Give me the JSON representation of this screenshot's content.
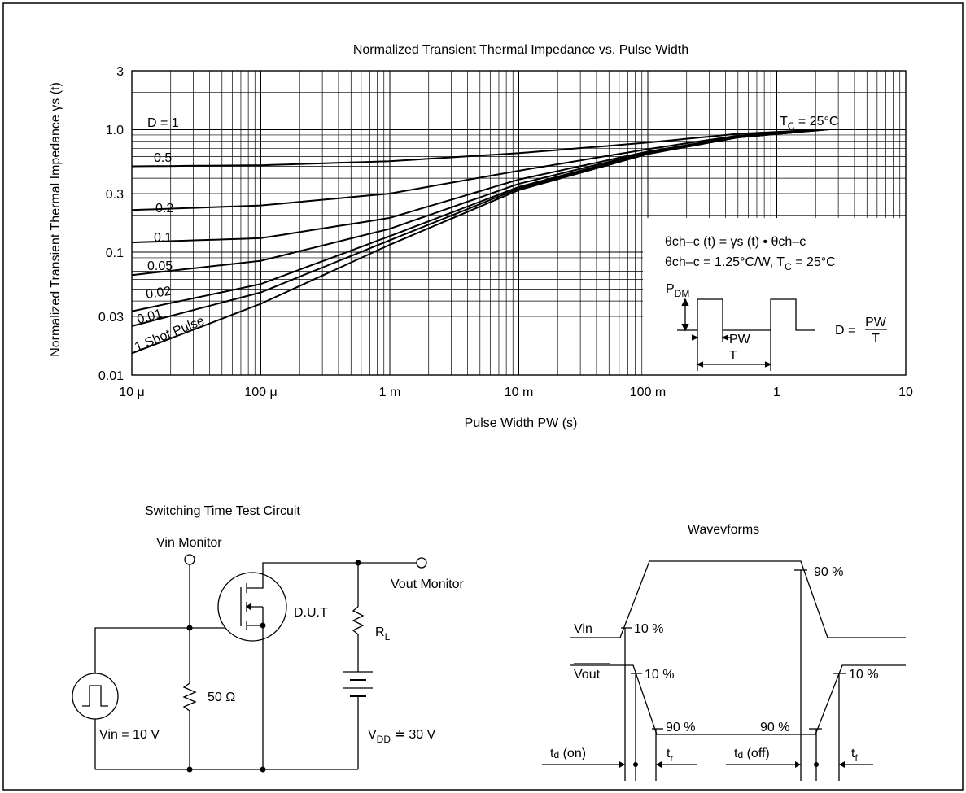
{
  "chart_data": {
    "type": "line",
    "title": "Normalized Transient Thermal Impedance vs. Pulse Width",
    "xlabel": "Pulse Width  PW  (s)",
    "ylabel": "Normalized Transient Thermal Impedance  γs  (t)",
    "x_scale": "log",
    "y_scale": "log",
    "xlim": [
      1e-05,
      10
    ],
    "ylim": [
      0.01,
      3
    ],
    "grid": true,
    "x_ticks": [
      {
        "value": 1e-05,
        "label": "10 μ"
      },
      {
        "value": 0.0001,
        "label": "100 μ"
      },
      {
        "value": 0.001,
        "label": "1 m"
      },
      {
        "value": 0.01,
        "label": "10 m"
      },
      {
        "value": 0.1,
        "label": "100 m"
      },
      {
        "value": 1,
        "label": "1"
      },
      {
        "value": 10,
        "label": "10"
      }
    ],
    "y_ticks": [
      {
        "value": 3,
        "label": "3"
      },
      {
        "value": 1,
        "label": "1.0"
      },
      {
        "value": 0.3,
        "label": "0.3"
      },
      {
        "value": 0.1,
        "label": "0.1"
      },
      {
        "value": 0.03,
        "label": "0.03"
      },
      {
        "value": 0.01,
        "label": "0.01"
      }
    ],
    "series": [
      {
        "name": "D = 1",
        "points": [
          [
            1e-05,
            1.0
          ],
          [
            10,
            1.0
          ]
        ]
      },
      {
        "name": "0.5",
        "points": [
          [
            1e-05,
            0.5
          ],
          [
            0.0001,
            0.51
          ],
          [
            0.001,
            0.55
          ],
          [
            0.01,
            0.64
          ],
          [
            0.1,
            0.78
          ],
          [
            0.5,
            0.92
          ],
          [
            2.5,
            1.0
          ],
          [
            10,
            1.0
          ]
        ]
      },
      {
        "name": "0.2",
        "points": [
          [
            1e-05,
            0.22
          ],
          [
            0.0001,
            0.24
          ],
          [
            0.001,
            0.3
          ],
          [
            0.01,
            0.46
          ],
          [
            0.1,
            0.69
          ],
          [
            0.5,
            0.89
          ],
          [
            2.5,
            1.0
          ],
          [
            10,
            1.0
          ]
        ]
      },
      {
        "name": "0.1",
        "points": [
          [
            1e-05,
            0.12
          ],
          [
            0.0001,
            0.13
          ],
          [
            0.001,
            0.19
          ],
          [
            0.01,
            0.39
          ],
          [
            0.1,
            0.66
          ],
          [
            0.5,
            0.87
          ],
          [
            2.5,
            1.0
          ],
          [
            10,
            1.0
          ]
        ]
      },
      {
        "name": "0.05",
        "points": [
          [
            1e-05,
            0.065
          ],
          [
            0.0001,
            0.085
          ],
          [
            0.001,
            0.155
          ],
          [
            0.01,
            0.36
          ],
          [
            0.1,
            0.65
          ],
          [
            0.5,
            0.87
          ],
          [
            2.5,
            1.0
          ],
          [
            10,
            1.0
          ]
        ]
      },
      {
        "name": "0.02",
        "points": [
          [
            1e-05,
            0.033
          ],
          [
            0.0001,
            0.055
          ],
          [
            0.001,
            0.135
          ],
          [
            0.01,
            0.34
          ],
          [
            0.1,
            0.64
          ],
          [
            0.5,
            0.86
          ],
          [
            2.5,
            1.0
          ],
          [
            10,
            1.0
          ]
        ]
      },
      {
        "name": "0.01",
        "points": [
          [
            1e-05,
            0.025
          ],
          [
            0.0001,
            0.047
          ],
          [
            0.001,
            0.125
          ],
          [
            0.01,
            0.33
          ],
          [
            0.1,
            0.63
          ],
          [
            0.5,
            0.86
          ],
          [
            2.5,
            1.0
          ],
          [
            10,
            1.0
          ]
        ]
      },
      {
        "name": "1 Shot Pulse",
        "points": [
          [
            1e-05,
            0.015
          ],
          [
            0.0001,
            0.038
          ],
          [
            0.001,
            0.115
          ],
          [
            0.01,
            0.32
          ],
          [
            0.1,
            0.63
          ],
          [
            0.5,
            0.86
          ],
          [
            2.5,
            1.0
          ],
          [
            10,
            1.0
          ]
        ]
      }
    ],
    "annotations": {
      "tc": "T",
      "tc_sub": "C",
      "tc_val": " = 25°C",
      "formula1": "θch–c (t) = γs (t) • θch–c",
      "formula2_a": "θch–c = 1.25°C/W, T",
      "formula2_sub": "C",
      "formula2_b": " = 25°C",
      "pdm": "P",
      "pdm_sub": "DM",
      "pw": "PW",
      "t": "T",
      "d_eq": "D =",
      "d_num": "PW",
      "d_den": "T"
    }
  },
  "circuit": {
    "title": "Switching Time Test Circuit",
    "vin_monitor": "Vin Monitor",
    "vout_monitor": "Vout Monitor",
    "dut": "D.U.T",
    "rl": "R",
    "rl_sub": "L",
    "resistor": "50 Ω",
    "vin": "Vin = 10 V",
    "vdd": "V",
    "vdd_sub": "DD",
    "vdd_val": " ≐ 30 V"
  },
  "waveforms": {
    "title": "Wavevforms",
    "vin": "Vin",
    "vout": "Vout",
    "p90_top": "90 %",
    "p10_vin": "10 %",
    "p10_vout_left": "10 %",
    "p10_vout_right": "10 %",
    "p90_left": "90 %",
    "p90_right": "90 %",
    "td_on": "t",
    "td_on_sub": "d",
    "td_on_suffix": " (on)",
    "tr": "t",
    "tr_sub": "r",
    "td_off": "t",
    "td_off_sub": "d",
    "td_off_suffix": " (off)",
    "tf": "t",
    "tf_sub": "f"
  }
}
